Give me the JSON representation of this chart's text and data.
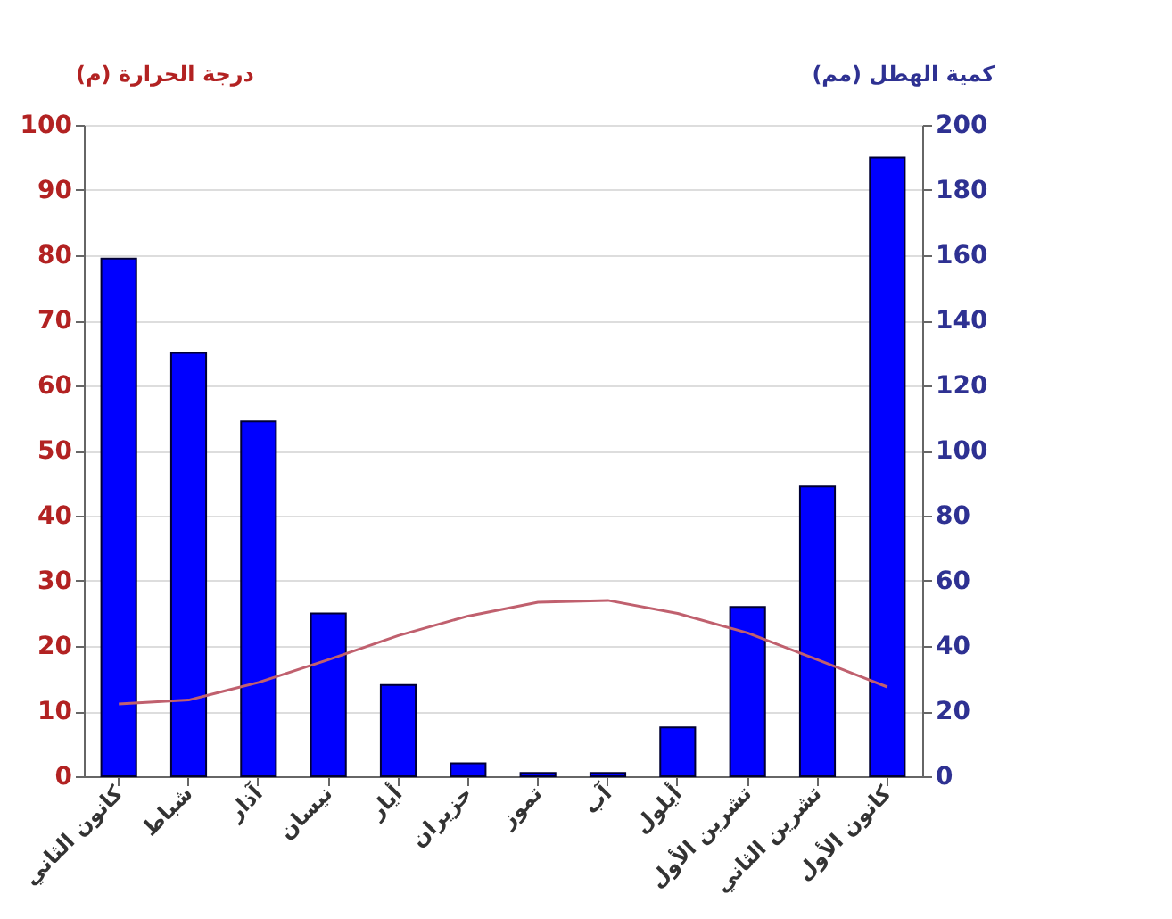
{
  "chart_data": {
    "type": "bar",
    "categories": [
      "كانون الثاني",
      "شباط",
      "آذار",
      "نيسان",
      "أيار",
      "حزيران",
      "تموز",
      "آب",
      "أيلول",
      "تشرين الأول",
      "تشرين الثاني",
      "كانون الأول"
    ],
    "ylabel": "درجة الحرارة (م)",
    "y2label": "كمية الهطل (مم)",
    "series": [
      {
        "axis": "y2",
        "color": "#0000ff",
        "values": [
          159,
          130,
          109,
          50,
          28,
          4,
          1,
          1,
          15,
          52,
          89,
          190
        ]
      },
      {
        "type": "line",
        "axis": "y",
        "color": "#c0606e",
        "values": [
          11.1,
          11.7,
          14.4,
          17.9,
          21.6,
          24.6,
          26.7,
          27,
          25,
          22,
          17.9,
          13.7
        ]
      }
    ],
    "ylim": [
      0,
      100
    ],
    "yticks": [
      0,
      10,
      20,
      30,
      40,
      50,
      60,
      70,
      80,
      90,
      100
    ],
    "y2lim": [
      0,
      200
    ],
    "y2ticks": [
      0,
      20,
      40,
      60,
      80,
      100,
      120,
      140,
      160,
      180,
      200
    ],
    "grid": "y",
    "marker": "none",
    "line_style": "solid"
  }
}
